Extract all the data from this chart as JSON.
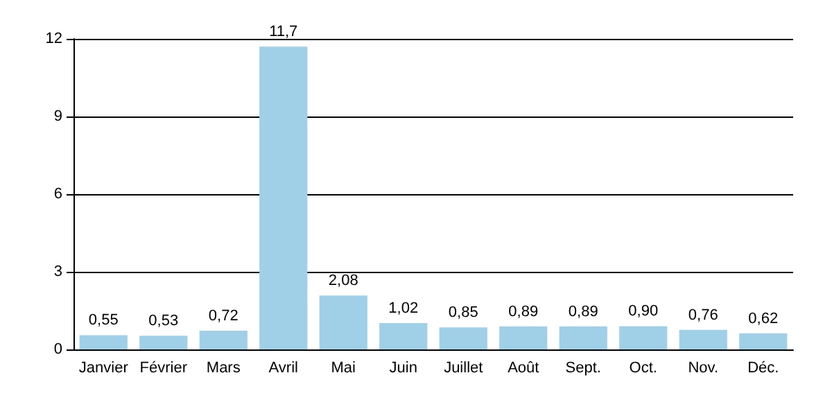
{
  "chart_data": {
    "type": "bar",
    "categories": [
      "Janvier",
      "Février",
      "Mars",
      "Avril",
      "Mai",
      "Juin",
      "Juillet",
      "Août",
      "Sept.",
      "Oct.",
      "Nov.",
      "Déc."
    ],
    "values": [
      0.55,
      0.53,
      0.72,
      11.7,
      2.08,
      1.02,
      0.85,
      0.89,
      0.89,
      0.9,
      0.76,
      0.62
    ],
    "value_labels": [
      "0,55",
      "0,53",
      "0,72",
      "11,7",
      "2,08",
      "1,02",
      "0,85",
      "0,89",
      "0,89",
      "0,90",
      "0,76",
      "0,62"
    ],
    "color": "#9fd0e8",
    "ylim": [
      0,
      12
    ],
    "yticks": [
      0,
      3,
      6,
      9,
      12
    ],
    "grid": "y"
  }
}
